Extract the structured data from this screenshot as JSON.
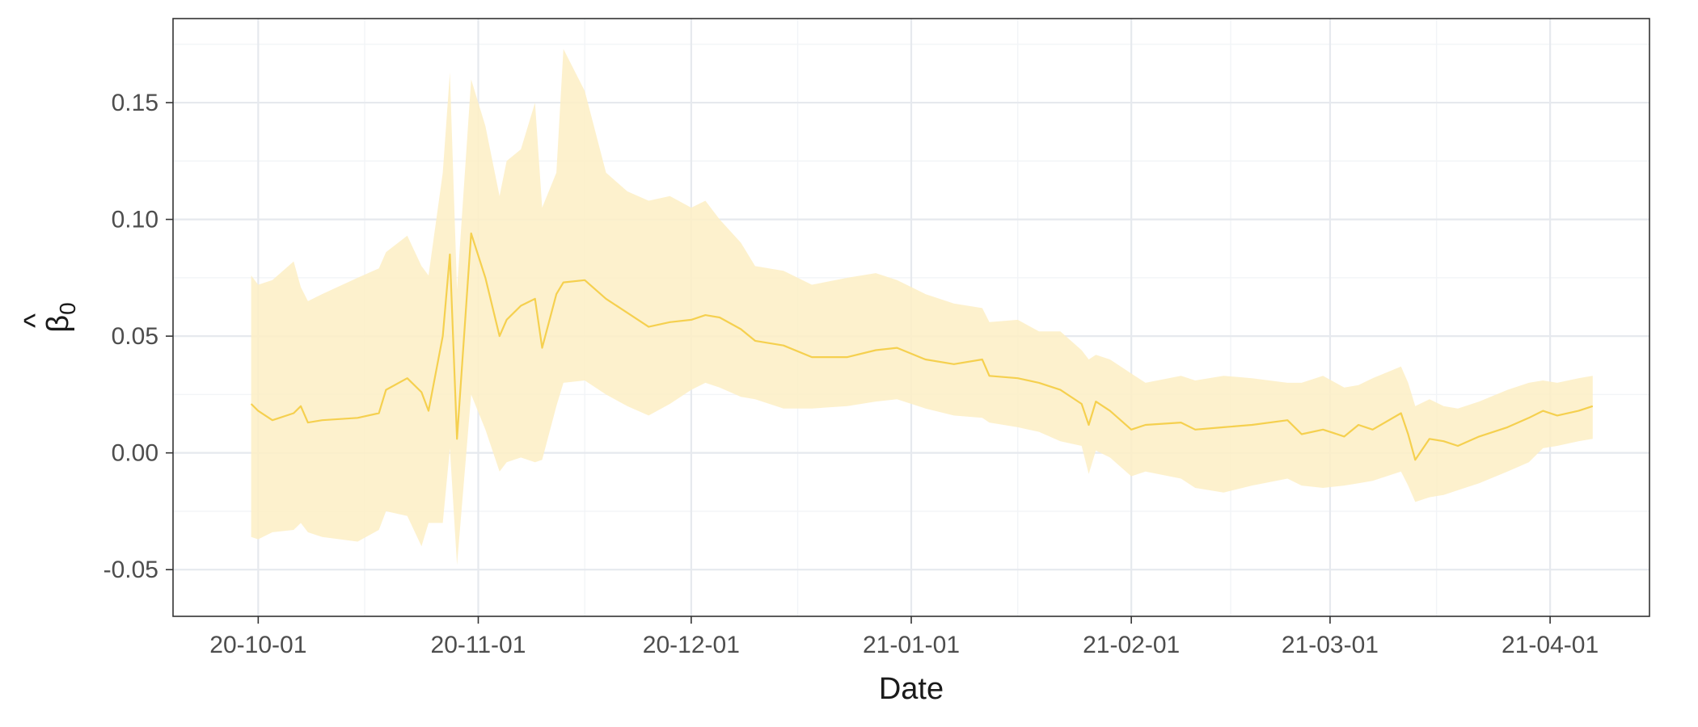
{
  "chart_data": {
    "type": "line",
    "title": "",
    "xlabel": "Date",
    "ylabel": "β̂0",
    "ylabel_parts": {
      "hat": "^",
      "symbol": "β",
      "subscript": "0"
    },
    "x_axis_type": "date",
    "xlim": [
      "2020-09-19",
      "2021-04-15"
    ],
    "ylim": [
      -0.07,
      0.186
    ],
    "x_tick_labels": [
      {
        "date": "2020-10-01",
        "label": "20-10-01"
      },
      {
        "date": "2020-11-01",
        "label": "20-11-01"
      },
      {
        "date": "2020-12-01",
        "label": "20-12-01"
      },
      {
        "date": "2021-01-01",
        "label": "21-01-01"
      },
      {
        "date": "2021-02-01",
        "label": "21-02-01"
      },
      {
        "date": "2021-03-01",
        "label": "21-03-01"
      },
      {
        "date": "2021-04-01",
        "label": "21-04-01"
      }
    ],
    "x_minor_breaks": [
      "2020-10-16",
      "2020-11-16",
      "2020-12-16",
      "2021-01-16",
      "2021-02-15",
      "2021-03-16"
    ],
    "y_ticks": [
      {
        "value": -0.05,
        "label": "-0.05"
      },
      {
        "value": 0.0,
        "label": "0.00"
      },
      {
        "value": 0.05,
        "label": "0.05"
      },
      {
        "value": 0.1,
        "label": "0.10"
      },
      {
        "value": 0.15,
        "label": "0.15"
      }
    ],
    "y_minor_breaks": [
      -0.025,
      0.025,
      0.075,
      0.125,
      0.175
    ],
    "grid": true,
    "legend": "none",
    "colors": {
      "line": "#f5d04f",
      "band": "#fdefc4",
      "frame": "#333333",
      "grid_major": "#e6e9ee",
      "grid_minor": "#f2f4f7"
    },
    "series": [
      {
        "style": "line_with_band",
        "points": [
          {
            "x": "2020-09-30",
            "y": 0.021,
            "lo": -0.036,
            "hi": 0.076
          },
          {
            "x": "2020-10-01",
            "y": 0.018,
            "lo": -0.037,
            "hi": 0.072
          },
          {
            "x": "2020-10-03",
            "y": 0.014,
            "lo": -0.034,
            "hi": 0.074
          },
          {
            "x": "2020-10-06",
            "y": 0.017,
            "lo": -0.033,
            "hi": 0.082
          },
          {
            "x": "2020-10-07",
            "y": 0.02,
            "lo": -0.03,
            "hi": 0.071
          },
          {
            "x": "2020-10-08",
            "y": 0.013,
            "lo": -0.034,
            "hi": 0.065
          },
          {
            "x": "2020-10-10",
            "y": 0.014,
            "lo": -0.036,
            "hi": 0.068
          },
          {
            "x": "2020-10-15",
            "y": 0.015,
            "lo": -0.038,
            "hi": 0.075
          },
          {
            "x": "2020-10-18",
            "y": 0.017,
            "lo": -0.033,
            "hi": 0.079
          },
          {
            "x": "2020-10-19",
            "y": 0.027,
            "lo": -0.025,
            "hi": 0.086
          },
          {
            "x": "2020-10-22",
            "y": 0.032,
            "lo": -0.027,
            "hi": 0.093
          },
          {
            "x": "2020-10-24",
            "y": 0.026,
            "lo": -0.04,
            "hi": 0.08
          },
          {
            "x": "2020-10-25",
            "y": 0.018,
            "lo": -0.03,
            "hi": 0.076
          },
          {
            "x": "2020-10-27",
            "y": 0.05,
            "lo": -0.03,
            "hi": 0.12
          },
          {
            "x": "2020-10-28",
            "y": 0.085,
            "lo": 0.002,
            "hi": 0.163
          },
          {
            "x": "2020-10-29",
            "y": 0.006,
            "lo": -0.048,
            "hi": 0.07
          },
          {
            "x": "2020-10-31",
            "y": 0.094,
            "lo": 0.025,
            "hi": 0.16
          },
          {
            "x": "2020-11-02",
            "y": 0.075,
            "lo": 0.01,
            "hi": 0.14
          },
          {
            "x": "2020-11-04",
            "y": 0.05,
            "lo": -0.008,
            "hi": 0.11
          },
          {
            "x": "2020-11-05",
            "y": 0.057,
            "lo": -0.004,
            "hi": 0.125
          },
          {
            "x": "2020-11-07",
            "y": 0.063,
            "lo": -0.002,
            "hi": 0.13
          },
          {
            "x": "2020-11-09",
            "y": 0.066,
            "lo": -0.004,
            "hi": 0.15
          },
          {
            "x": "2020-11-10",
            "y": 0.045,
            "lo": -0.003,
            "hi": 0.105
          },
          {
            "x": "2020-11-12",
            "y": 0.068,
            "lo": 0.02,
            "hi": 0.12
          },
          {
            "x": "2020-11-13",
            "y": 0.073,
            "lo": 0.03,
            "hi": 0.173
          },
          {
            "x": "2020-11-16",
            "y": 0.074,
            "lo": 0.031,
            "hi": 0.155
          },
          {
            "x": "2020-11-19",
            "y": 0.066,
            "lo": 0.025,
            "hi": 0.12
          },
          {
            "x": "2020-11-22",
            "y": 0.06,
            "lo": 0.02,
            "hi": 0.112
          },
          {
            "x": "2020-11-25",
            "y": 0.054,
            "lo": 0.016,
            "hi": 0.108
          },
          {
            "x": "2020-11-28",
            "y": 0.056,
            "lo": 0.021,
            "hi": 0.11
          },
          {
            "x": "2020-12-01",
            "y": 0.057,
            "lo": 0.027,
            "hi": 0.105
          },
          {
            "x": "2020-12-03",
            "y": 0.059,
            "lo": 0.03,
            "hi": 0.108
          },
          {
            "x": "2020-12-05",
            "y": 0.058,
            "lo": 0.028,
            "hi": 0.1
          },
          {
            "x": "2020-12-08",
            "y": 0.053,
            "lo": 0.024,
            "hi": 0.09
          },
          {
            "x": "2020-12-10",
            "y": 0.048,
            "lo": 0.023,
            "hi": 0.08
          },
          {
            "x": "2020-12-14",
            "y": 0.046,
            "lo": 0.019,
            "hi": 0.078
          },
          {
            "x": "2020-12-18",
            "y": 0.041,
            "lo": 0.019,
            "hi": 0.072
          },
          {
            "x": "2020-12-23",
            "y": 0.041,
            "lo": 0.02,
            "hi": 0.075
          },
          {
            "x": "2020-12-27",
            "y": 0.044,
            "lo": 0.022,
            "hi": 0.077
          },
          {
            "x": "2020-12-30",
            "y": 0.045,
            "lo": 0.023,
            "hi": 0.074
          },
          {
            "x": "2021-01-03",
            "y": 0.04,
            "lo": 0.019,
            "hi": 0.068
          },
          {
            "x": "2021-01-07",
            "y": 0.038,
            "lo": 0.016,
            "hi": 0.064
          },
          {
            "x": "2021-01-11",
            "y": 0.04,
            "lo": 0.015,
            "hi": 0.062
          },
          {
            "x": "2021-01-12",
            "y": 0.033,
            "lo": 0.013,
            "hi": 0.056
          },
          {
            "x": "2021-01-16",
            "y": 0.032,
            "lo": 0.011,
            "hi": 0.057
          },
          {
            "x": "2021-01-19",
            "y": 0.03,
            "lo": 0.009,
            "hi": 0.052
          },
          {
            "x": "2021-01-22",
            "y": 0.027,
            "lo": 0.005,
            "hi": 0.052
          },
          {
            "x": "2021-01-25",
            "y": 0.021,
            "lo": 0.003,
            "hi": 0.044
          },
          {
            "x": "2021-01-26",
            "y": 0.012,
            "lo": -0.009,
            "hi": 0.04
          },
          {
            "x": "2021-01-27",
            "y": 0.022,
            "lo": 0.001,
            "hi": 0.042
          },
          {
            "x": "2021-01-29",
            "y": 0.018,
            "lo": -0.002,
            "hi": 0.04
          },
          {
            "x": "2021-02-01",
            "y": 0.01,
            "lo": -0.01,
            "hi": 0.034
          },
          {
            "x": "2021-02-03",
            "y": 0.012,
            "lo": -0.008,
            "hi": 0.03
          },
          {
            "x": "2021-02-08",
            "y": 0.013,
            "lo": -0.011,
            "hi": 0.033
          },
          {
            "x": "2021-02-10",
            "y": 0.01,
            "lo": -0.015,
            "hi": 0.031
          },
          {
            "x": "2021-02-14",
            "y": 0.011,
            "lo": -0.017,
            "hi": 0.033
          },
          {
            "x": "2021-02-18",
            "y": 0.012,
            "lo": -0.014,
            "hi": 0.032
          },
          {
            "x": "2021-02-23",
            "y": 0.014,
            "lo": -0.011,
            "hi": 0.03
          },
          {
            "x": "2021-02-25",
            "y": 0.008,
            "lo": -0.014,
            "hi": 0.03
          },
          {
            "x": "2021-02-28",
            "y": 0.01,
            "lo": -0.015,
            "hi": 0.033
          },
          {
            "x": "2021-03-03",
            "y": 0.007,
            "lo": -0.014,
            "hi": 0.028
          },
          {
            "x": "2021-03-05",
            "y": 0.012,
            "lo": -0.013,
            "hi": 0.029
          },
          {
            "x": "2021-03-07",
            "y": 0.01,
            "lo": -0.012,
            "hi": 0.032
          },
          {
            "x": "2021-03-11",
            "y": 0.017,
            "lo": -0.008,
            "hi": 0.037
          },
          {
            "x": "2021-03-12",
            "y": 0.008,
            "lo": -0.014,
            "hi": 0.03
          },
          {
            "x": "2021-03-13",
            "y": -0.003,
            "lo": -0.021,
            "hi": 0.02
          },
          {
            "x": "2021-03-15",
            "y": 0.006,
            "lo": -0.019,
            "hi": 0.023
          },
          {
            "x": "2021-03-17",
            "y": 0.005,
            "lo": -0.018,
            "hi": 0.02
          },
          {
            "x": "2021-03-19",
            "y": 0.003,
            "lo": -0.016,
            "hi": 0.019
          },
          {
            "x": "2021-03-22",
            "y": 0.007,
            "lo": -0.013,
            "hi": 0.022
          },
          {
            "x": "2021-03-26",
            "y": 0.011,
            "lo": -0.008,
            "hi": 0.027
          },
          {
            "x": "2021-03-29",
            "y": 0.015,
            "lo": -0.004,
            "hi": 0.03
          },
          {
            "x": "2021-03-31",
            "y": 0.018,
            "lo": 0.002,
            "hi": 0.031
          },
          {
            "x": "2021-04-02",
            "y": 0.016,
            "lo": 0.003,
            "hi": 0.03
          },
          {
            "x": "2021-04-05",
            "y": 0.018,
            "lo": 0.005,
            "hi": 0.032
          },
          {
            "x": "2021-04-07",
            "y": 0.02,
            "lo": 0.006,
            "hi": 0.033
          }
        ]
      }
    ]
  }
}
